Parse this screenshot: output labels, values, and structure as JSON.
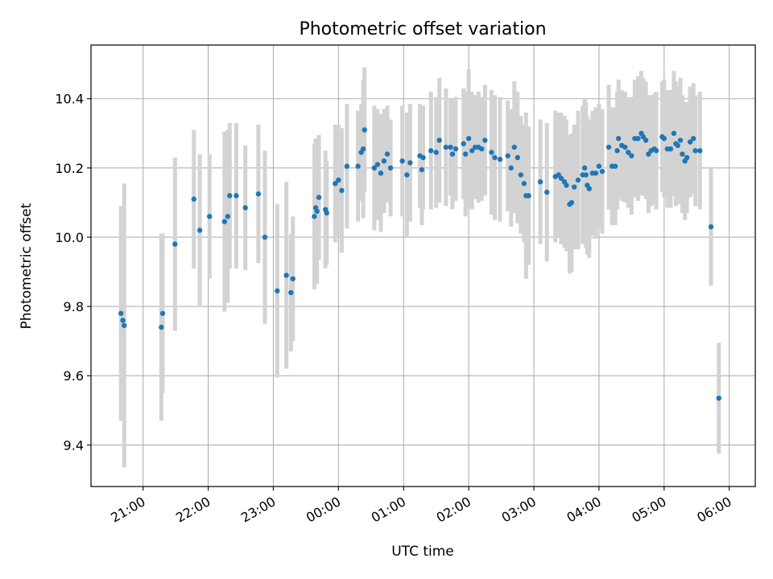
{
  "chart_data": {
    "type": "scatter",
    "title": "Photometric offset variation",
    "xlabel": "UTC time",
    "ylabel": "Photometric offset",
    "x_unit": "hours UTC (values above 24 are the following day)",
    "xlim": [
      20.2,
      30.4
    ],
    "ylim": [
      9.28,
      10.555
    ],
    "x_ticks": [
      21,
      22,
      23,
      24,
      25,
      26,
      27,
      28,
      29,
      30
    ],
    "x_tick_labels": [
      "21:00",
      "22:00",
      "23:00",
      "00:00",
      "01:00",
      "02:00",
      "03:00",
      "04:00",
      "05:00",
      "06:00"
    ],
    "y_ticks": [
      9.4,
      9.6,
      9.8,
      10.0,
      10.2,
      10.4
    ],
    "y_tick_labels": [
      "9.4",
      "9.6",
      "9.8",
      "10.0",
      "10.2",
      "10.4"
    ],
    "grid": true,
    "legend": "none",
    "colors": {
      "marker": "#1f77b4",
      "errorbar": "#d3d3d3",
      "grid": "#b0b0b0",
      "axes": "#000000"
    },
    "points": [
      [
        20.66,
        9.78,
        0.31
      ],
      [
        20.69,
        9.76,
        0.1
      ],
      [
        20.71,
        9.745,
        0.41
      ],
      [
        21.28,
        9.74,
        0.27
      ],
      [
        21.3,
        9.78,
        0.23
      ],
      [
        21.49,
        9.98,
        0.25
      ],
      [
        21.78,
        10.11,
        0.2
      ],
      [
        21.87,
        10.02,
        0.22
      ],
      [
        22.02,
        10.06,
        0.18
      ],
      [
        22.25,
        10.045,
        0.26
      ],
      [
        22.3,
        10.06,
        0.25
      ],
      [
        22.33,
        10.12,
        0.21
      ],
      [
        22.43,
        10.12,
        0.21
      ],
      [
        22.57,
        10.085,
        0.18
      ],
      [
        22.77,
        10.125,
        0.2
      ],
      [
        22.87,
        10.0,
        0.25
      ],
      [
        23.06,
        9.845,
        0.25
      ],
      [
        23.2,
        9.89,
        0.27
      ],
      [
        23.27,
        9.84,
        0.17
      ],
      [
        23.3,
        9.88,
        0.18
      ],
      [
        23.63,
        10.06,
        0.21
      ],
      [
        23.65,
        10.085,
        0.2
      ],
      [
        23.67,
        10.075,
        0.21
      ],
      [
        23.7,
        10.115,
        0.18
      ],
      [
        23.8,
        10.08,
        0.17
      ],
      [
        23.82,
        10.07,
        0.15
      ],
      [
        23.95,
        10.155,
        0.17
      ],
      [
        24.0,
        10.165,
        0.16
      ],
      [
        24.05,
        10.135,
        0.18
      ],
      [
        24.13,
        10.205,
        0.18
      ],
      [
        24.3,
        10.205,
        0.16
      ],
      [
        24.35,
        10.245,
        0.14
      ],
      [
        24.38,
        10.255,
        0.2
      ],
      [
        24.4,
        10.31,
        0.18
      ],
      [
        24.55,
        10.2,
        0.18
      ],
      [
        24.6,
        10.21,
        0.16
      ],
      [
        24.65,
        10.185,
        0.17
      ],
      [
        24.7,
        10.22,
        0.15
      ],
      [
        24.75,
        10.24,
        0.14
      ],
      [
        24.8,
        10.2,
        0.14
      ],
      [
        24.98,
        10.22,
        0.16
      ],
      [
        25.05,
        10.18,
        0.18
      ],
      [
        25.1,
        10.215,
        0.17
      ],
      [
        25.25,
        10.235,
        0.15
      ],
      [
        25.28,
        10.195,
        0.16
      ],
      [
        25.3,
        10.23,
        0.15
      ],
      [
        25.42,
        10.25,
        0.17
      ],
      [
        25.5,
        10.245,
        0.16
      ],
      [
        25.55,
        10.28,
        0.18
      ],
      [
        25.65,
        10.26,
        0.17
      ],
      [
        25.72,
        10.26,
        0.14
      ],
      [
        25.75,
        10.24,
        0.16
      ],
      [
        25.8,
        10.255,
        0.15
      ],
      [
        25.92,
        10.27,
        0.16
      ],
      [
        25.95,
        10.24,
        0.18
      ],
      [
        26.0,
        10.285,
        0.2
      ],
      [
        26.05,
        10.25,
        0.17
      ],
      [
        26.1,
        10.26,
        0.15
      ],
      [
        26.15,
        10.26,
        0.16
      ],
      [
        26.2,
        10.255,
        0.15
      ],
      [
        26.25,
        10.28,
        0.16
      ],
      [
        26.35,
        10.245,
        0.18
      ],
      [
        26.4,
        10.23,
        0.18
      ],
      [
        26.48,
        10.225,
        0.18
      ],
      [
        26.6,
        10.235,
        0.16
      ],
      [
        26.65,
        10.2,
        0.17
      ],
      [
        26.7,
        10.26,
        0.19
      ],
      [
        26.75,
        10.23,
        0.19
      ],
      [
        26.8,
        10.18,
        0.17
      ],
      [
        26.85,
        10.155,
        0.17
      ],
      [
        26.88,
        10.12,
        0.24
      ],
      [
        26.92,
        10.12,
        0.2
      ],
      [
        27.1,
        10.16,
        0.18
      ],
      [
        27.2,
        10.13,
        0.2
      ],
      [
        27.33,
        10.175,
        0.19
      ],
      [
        27.38,
        10.18,
        0.18
      ],
      [
        27.42,
        10.17,
        0.19
      ],
      [
        27.47,
        10.16,
        0.19
      ],
      [
        27.5,
        10.15,
        0.19
      ],
      [
        27.55,
        10.095,
        0.2
      ],
      [
        27.58,
        10.1,
        0.2
      ],
      [
        27.62,
        10.145,
        0.18
      ],
      [
        27.68,
        10.165,
        0.2
      ],
      [
        27.75,
        10.18,
        0.2
      ],
      [
        27.78,
        10.2,
        0.2
      ],
      [
        27.8,
        10.18,
        0.21
      ],
      [
        27.82,
        10.15,
        0.2
      ],
      [
        27.85,
        10.14,
        0.2
      ],
      [
        27.9,
        10.185,
        0.18
      ],
      [
        27.95,
        10.185,
        0.19
      ],
      [
        28.0,
        10.205,
        0.18
      ],
      [
        28.05,
        10.19,
        0.18
      ],
      [
        28.15,
        10.26,
        0.18
      ],
      [
        28.2,
        10.205,
        0.17
      ],
      [
        28.25,
        10.205,
        0.17
      ],
      [
        28.28,
        10.25,
        0.17
      ],
      [
        28.3,
        10.285,
        0.17
      ],
      [
        28.35,
        10.265,
        0.16
      ],
      [
        28.4,
        10.26,
        0.16
      ],
      [
        28.45,
        10.245,
        0.16
      ],
      [
        28.5,
        10.235,
        0.17
      ],
      [
        28.55,
        10.285,
        0.17
      ],
      [
        28.6,
        10.285,
        0.18
      ],
      [
        28.65,
        10.3,
        0.18
      ],
      [
        28.68,
        10.29,
        0.17
      ],
      [
        28.72,
        10.28,
        0.17
      ],
      [
        28.76,
        10.24,
        0.17
      ],
      [
        28.8,
        10.25,
        0.16
      ],
      [
        28.85,
        10.255,
        0.16
      ],
      [
        28.88,
        10.25,
        0.17
      ],
      [
        28.97,
        10.29,
        0.16
      ],
      [
        29.0,
        10.285,
        0.17
      ],
      [
        29.05,
        10.255,
        0.17
      ],
      [
        29.1,
        10.255,
        0.17
      ],
      [
        29.15,
        10.3,
        0.18
      ],
      [
        29.18,
        10.27,
        0.18
      ],
      [
        29.21,
        10.265,
        0.17
      ],
      [
        29.25,
        10.28,
        0.18
      ],
      [
        29.28,
        10.24,
        0.17
      ],
      [
        29.32,
        10.22,
        0.17
      ],
      [
        29.35,
        10.23,
        0.16
      ],
      [
        29.4,
        10.275,
        0.16
      ],
      [
        29.45,
        10.285,
        0.16
      ],
      [
        29.48,
        10.25,
        0.16
      ],
      [
        29.55,
        10.25,
        0.17
      ],
      [
        29.72,
        10.03,
        0.17
      ],
      [
        29.84,
        9.535,
        0.16
      ]
    ]
  }
}
